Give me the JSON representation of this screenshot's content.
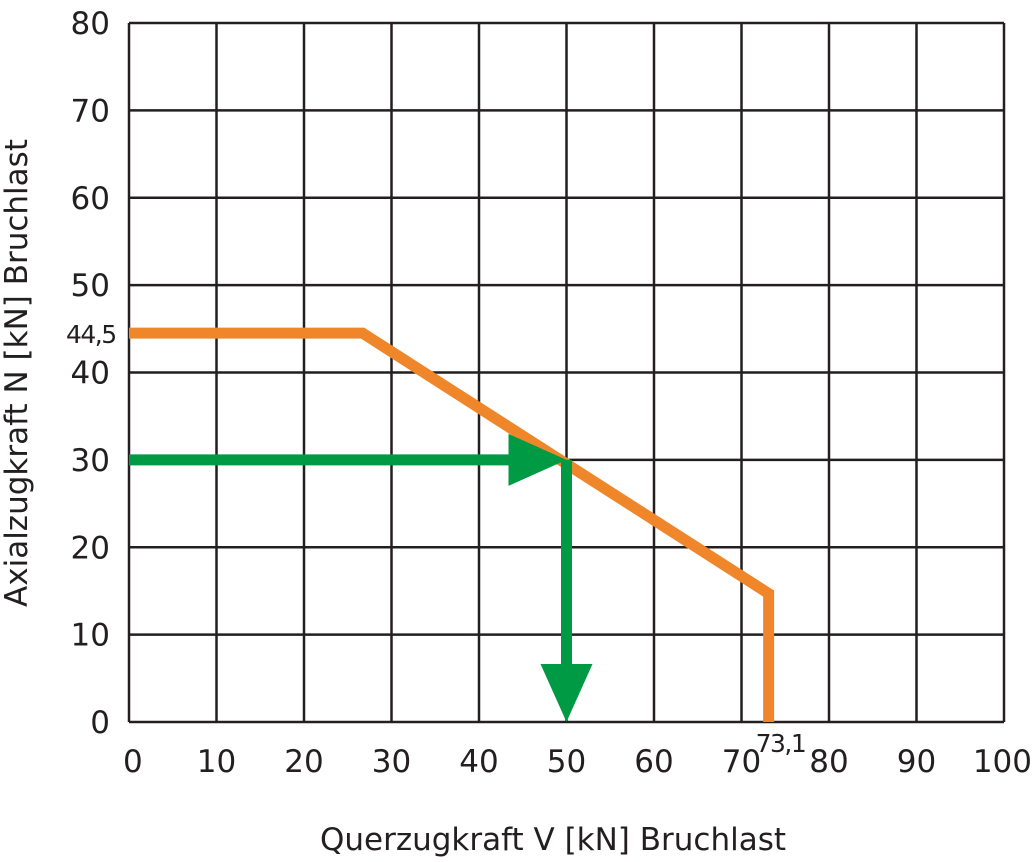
{
  "chart_data": {
    "type": "line",
    "title": "",
    "xlabel": "Querzugkraft V [kN] Bruchlast",
    "ylabel": "Axialzugkraft N [kN] Bruchlast",
    "xlim": [
      0,
      100
    ],
    "ylim": [
      0,
      80
    ],
    "x_ticks": [
      "0",
      "10",
      "20",
      "30",
      "40",
      "50",
      "60",
      "70",
      "80",
      "90",
      "100"
    ],
    "y_ticks": [
      "0",
      "10",
      "20",
      "30",
      "40",
      "50",
      "60",
      "70",
      "80"
    ],
    "grid": true,
    "series": [
      {
        "color": "#f0862a",
        "points": [
          [
            0,
            44.5
          ],
          [
            26.7,
            44.5
          ],
          [
            73.1,
            14.7
          ],
          [
            73.1,
            0
          ]
        ]
      }
    ],
    "annotations": [
      {
        "text": "44,5",
        "axis": "y",
        "value": 44.5
      },
      {
        "text": "73,1",
        "axis": "x",
        "value": 73.1
      }
    ],
    "arrows": [
      {
        "color": "#009a44",
        "from": [
          0,
          30
        ],
        "to": [
          50,
          30
        ]
      },
      {
        "color": "#009a44",
        "from": [
          50,
          30
        ],
        "to": [
          50,
          0
        ]
      }
    ]
  }
}
